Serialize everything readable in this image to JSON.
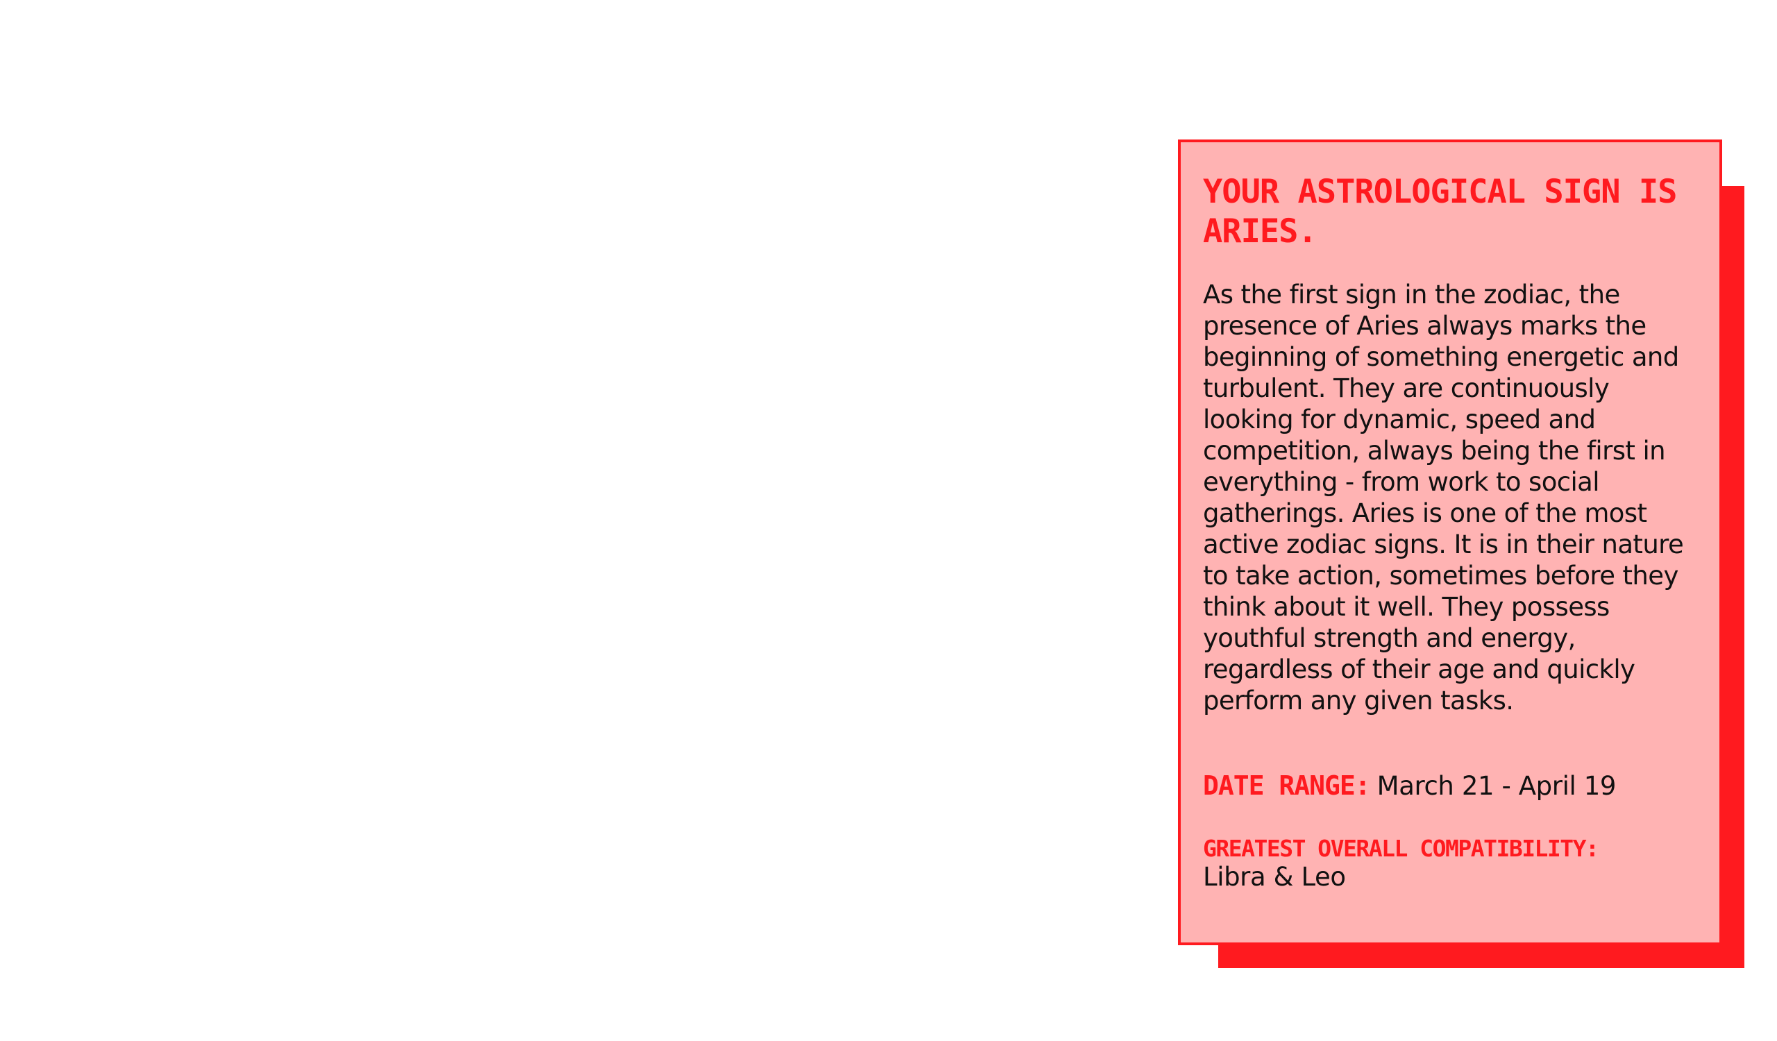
{
  "card": {
    "title": "Your astrological sign is Aries.",
    "description": "As the first sign in the zodiac, the presence of Aries always marks the beginning of something energetic and turbulent. They are continuously looking for dynamic, speed and competition, always being the first in everything - from work to social gatherings. Aries is one of the most active zodiac signs. It is in their nature to take action, sometimes before they think about it well. They possess youthful strength and energy, regardless of their age and quickly perform any given tasks.",
    "date_range_label": "Date range:",
    "date_range_value": "March 21 - April 19",
    "compatibility_label": "Greatest overall compatibility:",
    "compatibility_value": "Libra & Leo"
  },
  "colors": {
    "accent": "#ff1a1f",
    "card_background": "#ffb3b3",
    "text": "#111111",
    "page_background": "#ffffff"
  }
}
